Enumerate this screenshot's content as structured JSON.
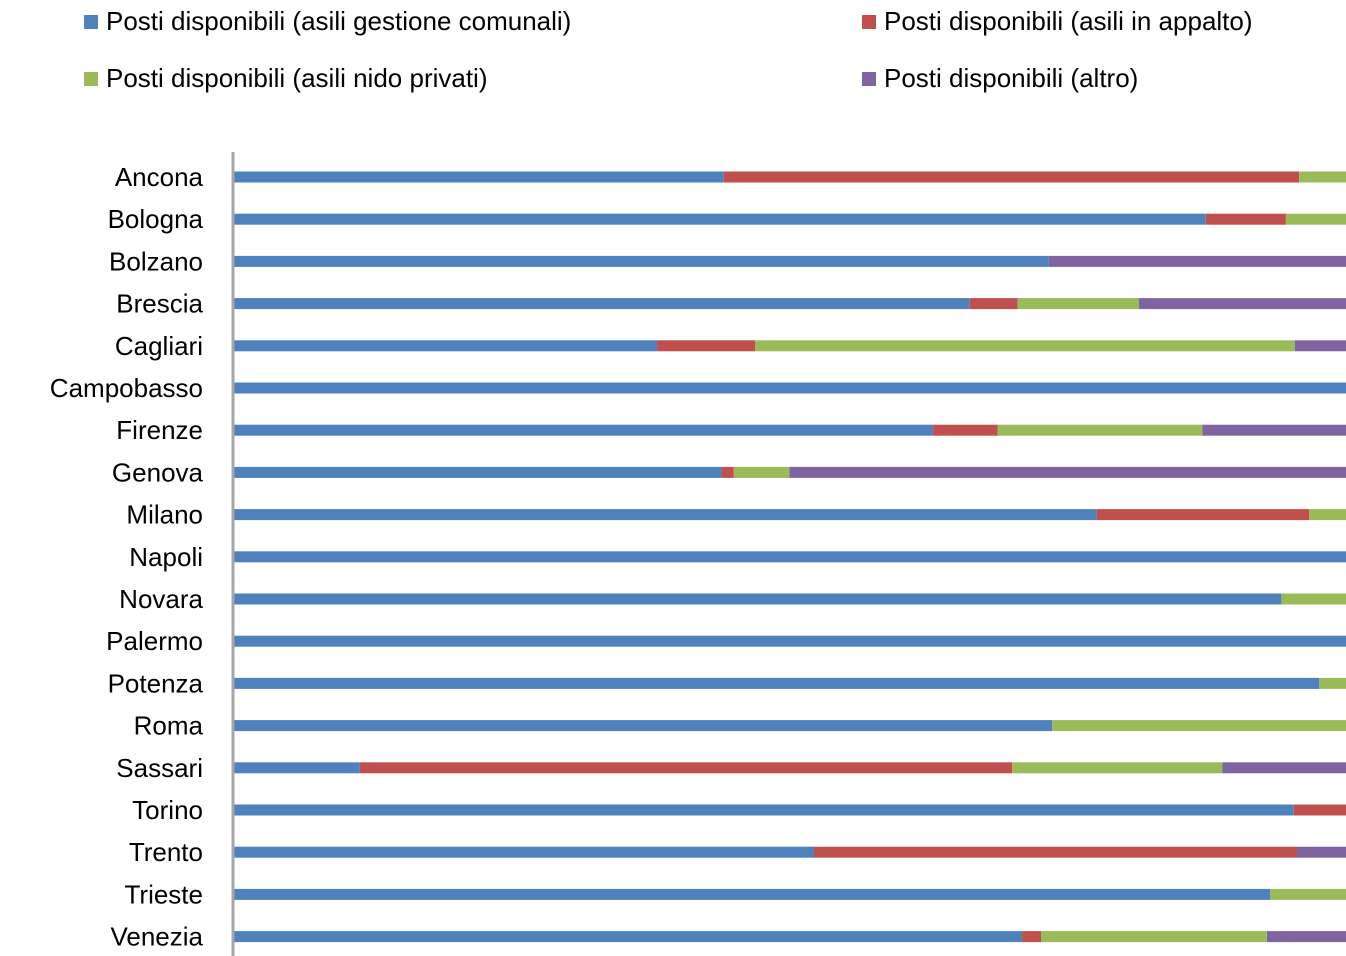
{
  "chart_data": {
    "type": "bar",
    "orientation": "horizontal",
    "stacked": "percent",
    "title": "",
    "xlabel": "",
    "ylabel": "",
    "xlim": [
      0,
      1
    ],
    "grid": false,
    "legend_position": "top",
    "categories": [
      "Ancona",
      "Bologna",
      "Bolzano",
      "Brescia",
      "Cagliari",
      "Campobasso",
      "Firenze",
      "Genova",
      "Milano",
      "Napoli",
      "Novara",
      "Palermo",
      "Potenza",
      "Roma",
      "Sassari",
      "Torino",
      "Trento",
      "Trieste",
      "Venezia"
    ],
    "series": [
      {
        "name": "Posti disponibili (asili gestione comunali)",
        "color": "#4F81BD",
        "values": [
          0.441,
          0.874,
          0.733,
          0.662,
          0.381,
          1.0,
          0.629,
          0.439,
          0.776,
          1.0,
          0.942,
          1.0,
          0.976,
          0.736,
          0.114,
          0.953,
          0.522,
          0.932,
          0.709
        ]
      },
      {
        "name": "Posti disponibili (asili in appalto)",
        "color": "#C0504D",
        "values": [
          0.517,
          0.072,
          0.0,
          0.043,
          0.088,
          0.0,
          0.058,
          0.011,
          0.191,
          0.0,
          0.0,
          0.0,
          0.0,
          0.0,
          0.586,
          0.047,
          0.434,
          0.0,
          0.017
        ]
      },
      {
        "name": "Posti disponibili (asili nido privati)",
        "color": "#9BBB59",
        "values": [
          0.042,
          0.054,
          0.0,
          0.109,
          0.485,
          0.0,
          0.184,
          0.05,
          0.033,
          0.0,
          0.058,
          0.0,
          0.024,
          0.264,
          0.189,
          0.0,
          0.0,
          0.068,
          0.203
        ]
      },
      {
        "name": "Posti disponibili (altro)",
        "color": "#8064A2",
        "values": [
          0.0,
          0.0,
          0.267,
          0.186,
          0.046,
          0.0,
          0.129,
          0.5,
          0.0,
          0.0,
          0.0,
          0.0,
          0.0,
          0.0,
          0.111,
          0.0,
          0.044,
          0.0,
          0.071
        ]
      }
    ]
  }
}
